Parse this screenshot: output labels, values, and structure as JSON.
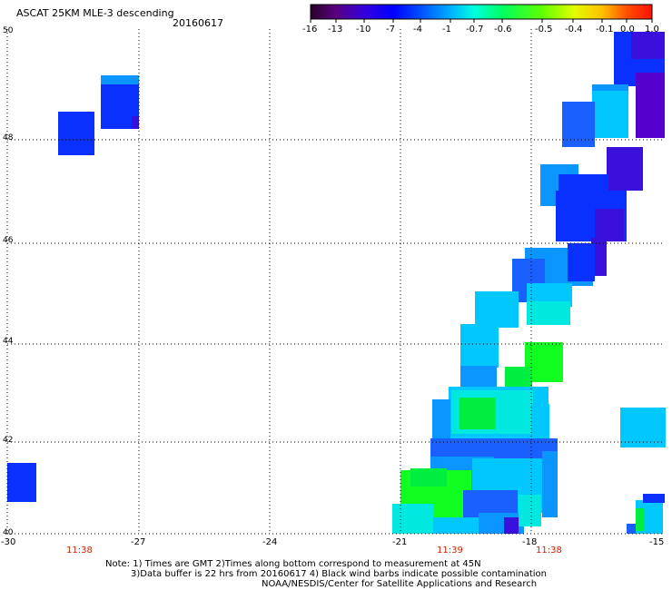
{
  "title": "ASCAT 25KM MLE-3 descending",
  "date": "20160617",
  "colorbar": {
    "tick_labels": [
      "-16",
      "-13",
      "-10",
      "-7",
      "-4",
      "-1",
      "-0.7",
      "-0.6",
      "-0.5",
      "-0.4",
      "-0.1",
      "0.0",
      "1.0"
    ],
    "colors": [
      "#2a002a",
      "#5a0080",
      "#3300dd",
      "#0000ff",
      "#0050ff",
      "#00b0ff",
      "#00ffe0",
      "#00ff60",
      "#60ff00",
      "#e0ff00",
      "#ffc000",
      "#ff5000",
      "#ff1000"
    ]
  },
  "map": {
    "lon_labels": [
      "-30",
      "-27",
      "-24",
      "-21",
      "-18",
      "-15"
    ],
    "lat_labels": [
      "50",
      "48",
      "46",
      "44",
      "42",
      "40"
    ],
    "lon_range": [
      -30,
      -15
    ],
    "lat_range": [
      40,
      50
    ],
    "times": [
      "11:38",
      "11:39",
      "11:38"
    ],
    "colors": {
      "purple": "#5500cc",
      "violet": "#3a10dd",
      "blue": "#0a30ff",
      "midblue": "#1a60ff",
      "lightblue": "#0b95ff",
      "cyan": "#00c8ff",
      "aqua": "#00e8e0",
      "green": "#00ee40",
      "brightgreen": "#10ff20"
    }
  },
  "notes": [
    "Note: 1) Times are GMT 2)Times along bottom correspond to measurement at 45N",
    "3)Data buffer is 22 hrs from 20160617 4) Black wind barbs indicate possible contamination",
    "NOAA/NESDIS/Center for Satellite Applications and Research"
  ]
}
